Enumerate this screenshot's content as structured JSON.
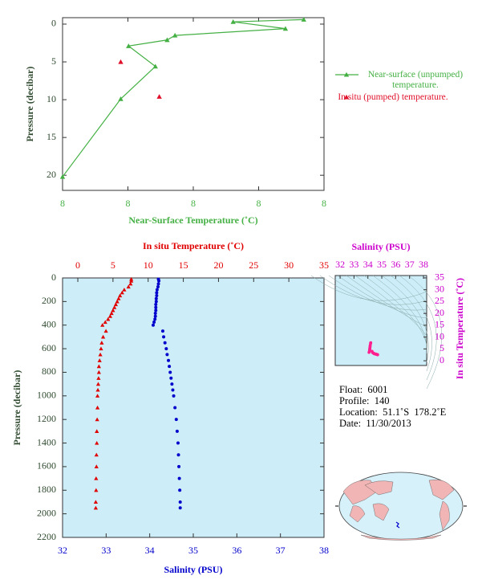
{
  "chart_data": [
    {
      "type": "line",
      "ylabel": "Pressure (decibar)",
      "xlabel": "Near-Surface Temperature (˚C)",
      "xlim": [
        7.8,
        8.2
      ],
      "xticks": [
        {
          "value": 7.8,
          "label": "8"
        },
        {
          "value": 7.9,
          "label": "8"
        },
        {
          "value": 8.0,
          "label": "8"
        },
        {
          "value": 8.1,
          "label": "8"
        },
        {
          "value": 8.2,
          "label": "8"
        }
      ],
      "ylim": [
        22,
        -0.85
      ],
      "yticks": [
        0,
        5,
        10,
        15,
        20
      ],
      "legend": "right",
      "series": [
        {
          "name": "Near-surface (unpumped) temperature.",
          "color": "#44b044",
          "marker": "triangle",
          "line": true,
          "x": [
            8.169,
            8.061,
            8.141,
            7.972,
            7.96,
            7.901,
            7.942,
            7.889,
            7.8
          ],
          "values": [
            -0.6,
            -0.3,
            0.6,
            1.5,
            2.1,
            2.9,
            5.6,
            9.9,
            20.2
          ]
        },
        {
          "name": "In situ (pumped) temperature.",
          "color": "#e0102a",
          "marker": "triangle",
          "line": false,
          "x": [
            7.889,
            7.948
          ],
          "values": [
            5.0,
            9.6
          ]
        }
      ]
    },
    {
      "type": "scatter",
      "ylabel": "Pressure (decibar)",
      "ylim": [
        2200,
        0
      ],
      "yticks": [
        0,
        200,
        400,
        600,
        800,
        1000,
        1200,
        1400,
        1600,
        1800,
        2000,
        2200
      ],
      "xlabel": "Salinity (PSU)",
      "xlim": [
        32,
        38
      ],
      "xticks": [
        32,
        33,
        34,
        35,
        36,
        37,
        38
      ],
      "x2label": "In situ Temperature (˚C)",
      "x2lim": [
        -2.17,
        35
      ],
      "x2ticks": [
        0,
        5,
        10,
        15,
        20,
        25,
        30,
        35
      ],
      "background": "#cdeef8",
      "y": [
        10,
        25,
        50,
        75,
        100,
        125,
        150,
        175,
        200,
        225,
        250,
        275,
        300,
        325,
        350,
        375,
        400,
        450,
        500,
        550,
        600,
        650,
        700,
        750,
        800,
        850,
        900,
        950,
        1000,
        1100,
        1200,
        1300,
        1400,
        1500,
        1600,
        1700,
        1800,
        1900,
        1950
      ],
      "series": [
        {
          "color": "#e00000",
          "marker": "triangle",
          "axis": "x2",
          "values": [
            7.6,
            7.6,
            7.5,
            7.2,
            6.6,
            6.3,
            6.0,
            5.8,
            5.6,
            5.4,
            5.2,
            5.0,
            4.8,
            4.6,
            4.3,
            3.9,
            3.5,
            4.0,
            3.6,
            3.4,
            3.3,
            3.2,
            3.1,
            3.0,
            3.0,
            2.95,
            2.9,
            2.85,
            2.8,
            2.8,
            2.75,
            2.7,
            2.7,
            2.65,
            2.65,
            2.6,
            2.6,
            2.55,
            2.55
          ]
        },
        {
          "color": "#0000cc",
          "marker": "circle",
          "axis": "x",
          "values": [
            34.2,
            34.21,
            34.2,
            34.19,
            34.17,
            34.16,
            34.16,
            34.15,
            34.15,
            34.14,
            34.14,
            34.14,
            34.13,
            34.13,
            34.12,
            34.1,
            34.08,
            34.3,
            34.32,
            34.35,
            34.38,
            34.4,
            34.43,
            34.45,
            34.47,
            34.49,
            34.51,
            34.53,
            34.55,
            34.58,
            34.61,
            34.63,
            34.65,
            34.66,
            34.67,
            34.68,
            34.69,
            34.7,
            34.7
          ]
        }
      ]
    },
    {
      "type": "ts-diagram",
      "xlabel": "Salinity (PSU)",
      "ylabel": "In situ Temperature (˚C)",
      "xlim": [
        31.65,
        38.23
      ],
      "xticks": [
        32,
        33,
        34,
        35,
        36,
        37,
        38
      ],
      "ylim": [
        -2,
        36
      ],
      "yticks": [
        0,
        5,
        10,
        15,
        20,
        25,
        30,
        35
      ],
      "axis_color": "#cc00cc",
      "color": "#ff1f8f",
      "background": "#cdeef8"
    }
  ],
  "float_info": [
    "Float:  6001",
    "Profile:  140",
    "Location:  51.1˚S  178.2˚E",
    "Date:  11/30/2013"
  ]
}
